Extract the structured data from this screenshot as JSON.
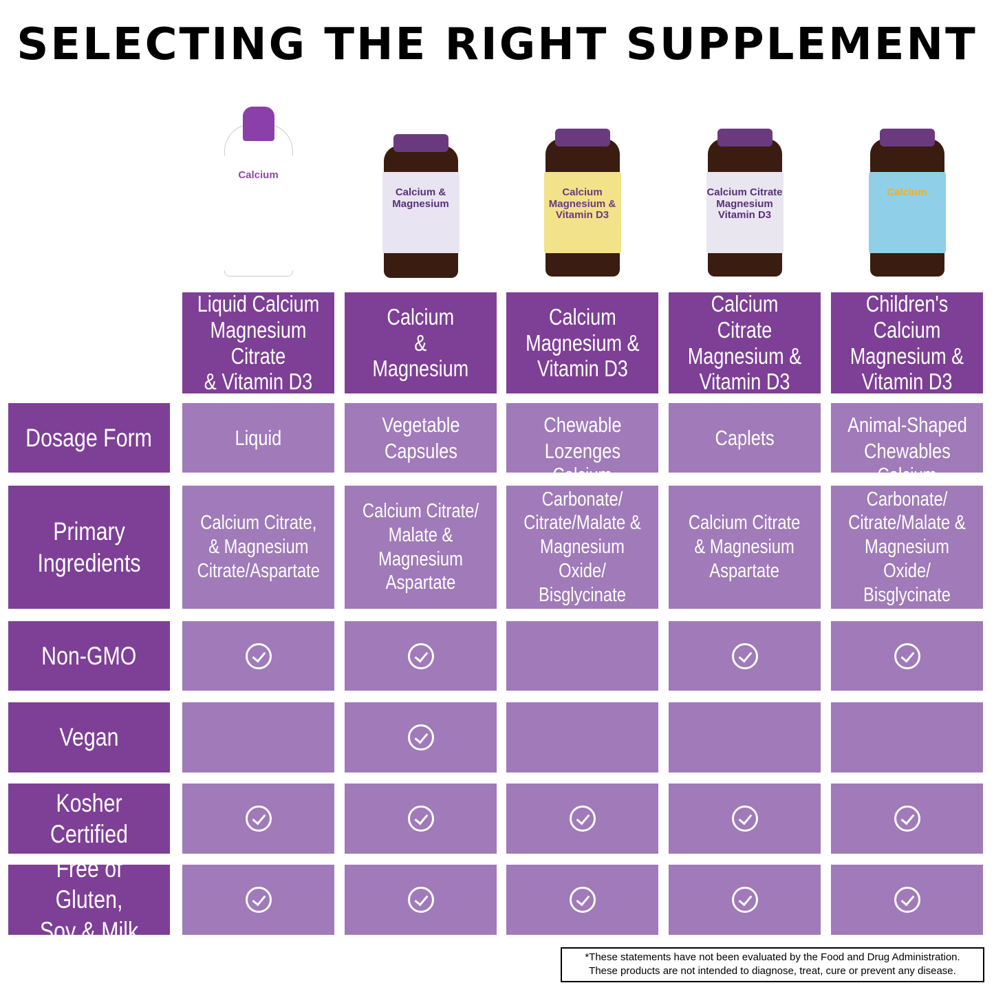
{
  "title": "SELECTING THE RIGHT SUPPLEMENT",
  "colors": {
    "header": "#7e3f96",
    "cell": "#a07ab9"
  },
  "products": [
    {
      "name": "Liquid Calcium\nMagnesium Citrate\n& Vitamin D3",
      "image": "liquid-bottle",
      "image_label": "Calcium",
      "dosage_form": "Liquid",
      "ingredients": "Calcium Citrate,\n& Magnesium\nCitrate/Aspartate",
      "non_gmo": true,
      "vegan": false,
      "kosher": true,
      "free_of": true
    },
    {
      "name": "Calcium\n&\nMagnesium",
      "image": "capsule-bottle",
      "image_label": "Calcium & Magnesium",
      "dosage_form": "Vegetable\nCapsules",
      "ingredients": "Calcium Citrate/\nMalate & Magnesium\nAspartate",
      "non_gmo": true,
      "vegan": true,
      "kosher": true,
      "free_of": true
    },
    {
      "name": "Calcium\nMagnesium &\nVitamin D3",
      "image": "chewable-bottle",
      "image_label": "Calcium Magnesium & Vitamin D3",
      "dosage_form": "Chewable\nLozenges",
      "ingredients": "Calcium Carbonate/\nCitrate/Malate &\nMagnesium Oxide/\nBisglycinate Chelate",
      "non_gmo": false,
      "vegan": false,
      "kosher": true,
      "free_of": true
    },
    {
      "name": "Calcium Citrate\nMagnesium &\nVitamin D3",
      "image": "caplet-bottle",
      "image_label": "Calcium Citrate Magnesium Vitamin D3",
      "dosage_form": "Caplets",
      "ingredients": "Calcium Citrate\n& Magnesium\nAspartate",
      "non_gmo": true,
      "vegan": false,
      "kosher": true,
      "free_of": true
    },
    {
      "name": "Children's Calcium\nMagnesium &\nVitamin D3",
      "image": "childrens-bottle",
      "image_label": "Calcium",
      "dosage_form": "Animal-Shaped\nChewables",
      "ingredients": "Calcium Carbonate/\nCitrate/Malate &\nMagnesium Oxide/\nBisglycinate Chelate",
      "non_gmo": true,
      "vegan": false,
      "kosher": true,
      "free_of": true
    }
  ],
  "row_labels": {
    "dosage_form": "Dosage Form",
    "ingredients": "Primary\nIngredients",
    "non_gmo": "Non-GMO",
    "vegan": "Vegan",
    "kosher": "Kosher Certified",
    "free_of": "Free of Gluten,\nSoy & Milk"
  },
  "disclaimer": {
    "line1": "*These statements have not been evaluated by the Food and Drug Administration.",
    "line2": "These products are not intended to diagnose, treat, cure or prevent any disease."
  }
}
